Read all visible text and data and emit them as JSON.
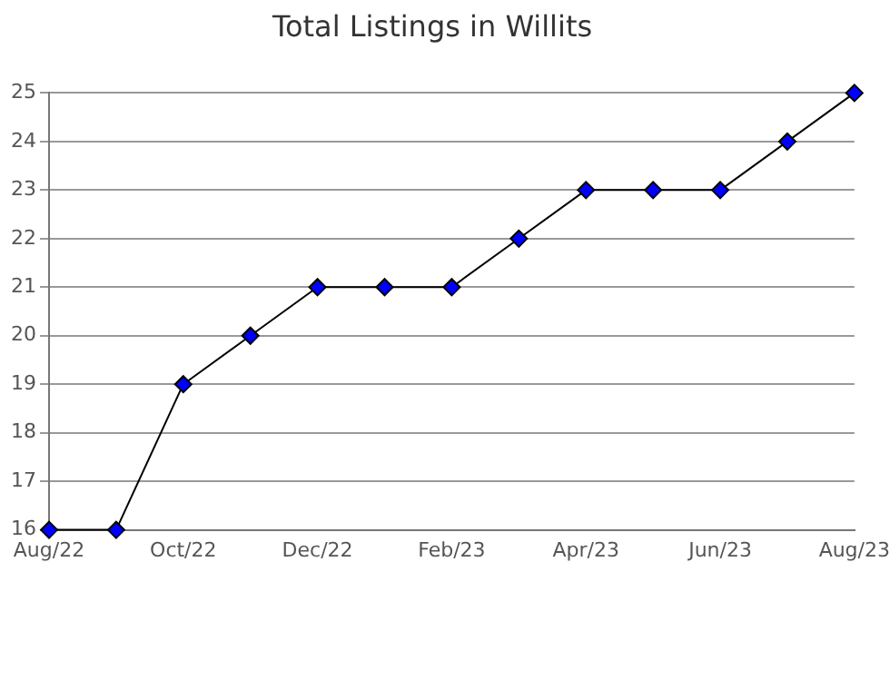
{
  "chart_data": {
    "type": "line",
    "title": "Total Listings in Willits",
    "categories": [
      "Aug/22",
      null,
      "Oct/22",
      null,
      "Dec/22",
      null,
      "Feb/23",
      null,
      "Apr/23",
      null,
      "Jun/23",
      null,
      "Aug/23"
    ],
    "series": [
      {
        "color": "#0000ff",
        "values": [
          16,
          16,
          19,
          20,
          21,
          21,
          21,
          22,
          23,
          23,
          23,
          24,
          25
        ]
      }
    ],
    "ylim": [
      16,
      25
    ],
    "yticks": [
      16,
      17,
      18,
      19,
      20,
      21,
      22,
      23,
      24,
      25
    ],
    "grid": "y",
    "legend": false,
    "marker": "diamond",
    "line_style": "solid"
  }
}
